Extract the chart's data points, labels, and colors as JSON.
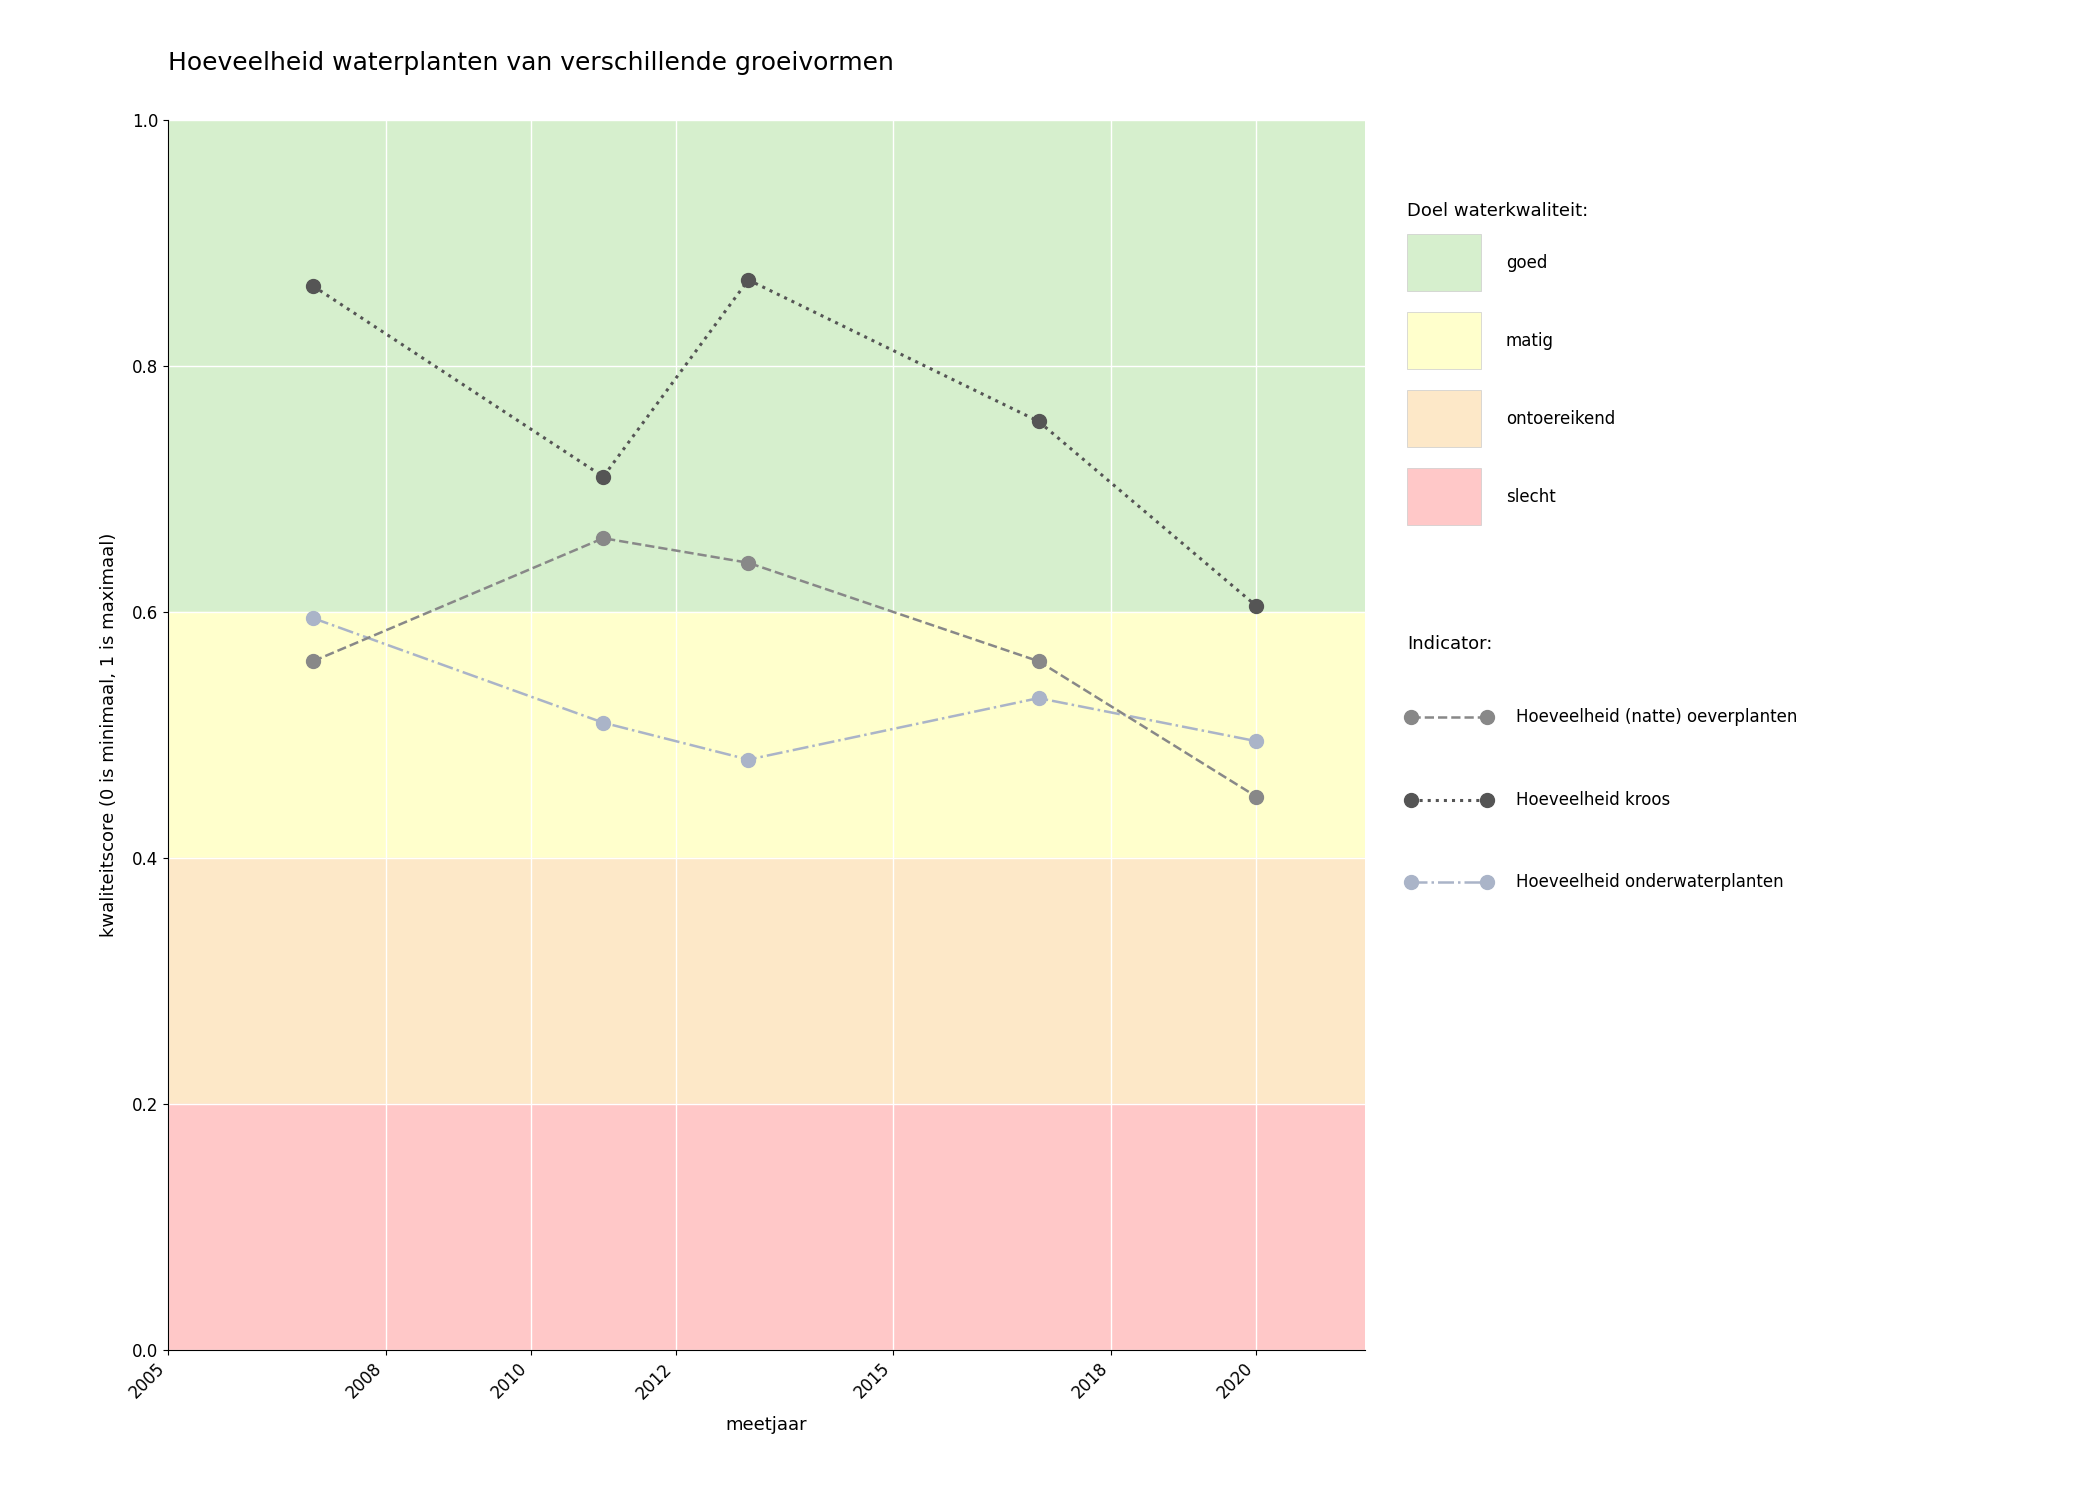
{
  "title": "Hoeveelheid waterplanten van verschillende groeivormen",
  "xlabel": "meetjaar",
  "ylabel": "kwaliteitscore (0 is minimaal, 1 is maximaal)",
  "xlim": [
    2005,
    2021.5
  ],
  "ylim": [
    0.0,
    1.0
  ],
  "xticks": [
    2005,
    2008,
    2010,
    2012,
    2015,
    2018,
    2020
  ],
  "yticks": [
    0.0,
    0.2,
    0.4,
    0.6,
    0.8,
    1.0
  ],
  "bg_good_min": 0.6,
  "bg_good_max": 1.0,
  "bg_good_color": "#d6efcd",
  "bg_moderate_min": 0.4,
  "bg_moderate_max": 0.6,
  "bg_moderate_color": "#ffffcc",
  "bg_insufficient_min": 0.2,
  "bg_insufficient_max": 0.4,
  "bg_insufficient_color": "#fde8c8",
  "bg_bad_min": 0.0,
  "bg_bad_max": 0.2,
  "bg_bad_color": "#ffc8c8",
  "series": [
    {
      "name": "Hoeveelheid (natte) oeverplanten",
      "years": [
        2007,
        2011,
        2013,
        2017,
        2020
      ],
      "values": [
        0.56,
        0.66,
        0.64,
        0.56,
        0.45
      ],
      "color": "#888888",
      "linestyle": "--",
      "marker": "o",
      "markersize": 10,
      "linewidth": 1.8,
      "marker_color": "#888888",
      "zorder": 3
    },
    {
      "name": "Hoeveelheid kroos",
      "years": [
        2007,
        2011,
        2013,
        2017,
        2020
      ],
      "values": [
        0.865,
        0.71,
        0.87,
        0.755,
        0.605
      ],
      "color": "#555555",
      "linestyle": ":",
      "marker": "o",
      "markersize": 10,
      "linewidth": 2.2,
      "marker_color": "#555555",
      "zorder": 4
    },
    {
      "name": "Hoeveelheid onderwaterplanten",
      "years": [
        2007,
        2011,
        2013,
        2017,
        2020
      ],
      "values": [
        0.595,
        0.51,
        0.48,
        0.53,
        0.495
      ],
      "color": "#aab4c8",
      "linestyle": "-.",
      "marker": "o",
      "markersize": 10,
      "linewidth": 1.8,
      "marker_color": "#aab4c8",
      "zorder": 2
    }
  ],
  "legend_title_bg": "Doel waterkwaliteit:",
  "legend_bg_items": [
    {
      "label": "goed",
      "color": "#d6efcd"
    },
    {
      "label": "matig",
      "color": "#ffffcc"
    },
    {
      "label": "ontoereikend",
      "color": "#fde8c8"
    },
    {
      "label": "slecht",
      "color": "#ffc8c8"
    }
  ],
  "legend_title_indicator": "Indicator:",
  "background_color": "#ffffff",
  "title_fontsize": 18,
  "label_fontsize": 13,
  "tick_fontsize": 12,
  "legend_fontsize": 12
}
